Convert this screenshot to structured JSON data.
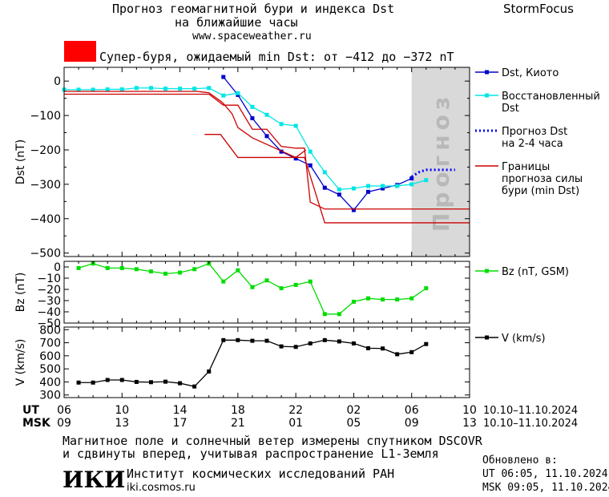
{
  "header": {
    "title_line1": "Прогноз геомагнитной бури и индекса Dst",
    "title_line2": "на ближайшие часы",
    "site_url": "www.spaceweather.ru",
    "brand": "StormFocus",
    "alert_text": "Супер-буря, ожидаемый min Dst: от −412 до −372 nT",
    "alert_color": "#ff0000"
  },
  "footer": {
    "note_line1": "Магнитное поле и солнечный ветер измерены спутником DSCOVR",
    "note_line2": "и сдвинуты вперед, учитывая распространение L1-Земля",
    "updated_label": "Обновлено в:",
    "updated_ut": "UT  06:05, 11.10.2024",
    "updated_msk": "MSK 09:05, 11.10.2024",
    "institute_logo": "ИКИ",
    "institute_name": "Институт космических исследований РАН",
    "institute_url": "iki.cosmos.ru"
  },
  "time_axis": {
    "ut_label": "UT",
    "msk_label": "MSK",
    "ut_ticks": [
      "06",
      "10",
      "14",
      "18",
      "22",
      "02",
      "06",
      "10"
    ],
    "msk_ticks": [
      "09",
      "13",
      "17",
      "21",
      "01",
      "05",
      "09",
      "13"
    ],
    "ut_range": "10.10–11.10.2024",
    "msk_range": "10.10–11.10.2024",
    "x_min_hours": 6,
    "x_max_hours": 34,
    "forecast_start_hours": 30,
    "forecast_label": "Прогноз"
  },
  "chart_data": [
    {
      "type": "line",
      "panel": "dst",
      "ylabel": "Dst (nT)",
      "ylim": [
        -510,
        40
      ],
      "yticks": [
        0,
        -100,
        -200,
        -300,
        -400,
        -500
      ],
      "x_unit": "hours since 06 UT 10.10.2024 (+6)",
      "series": [
        {
          "name": "Dst, Киото",
          "color": "#0000cc",
          "marker": "square",
          "x": [
            17,
            18,
            19,
            20,
            21,
            22,
            23,
            24,
            25,
            26,
            27,
            28,
            29,
            30
          ],
          "y": [
            12,
            -40,
            -108,
            -160,
            -205,
            -225,
            -245,
            -310,
            -330,
            -375,
            -322,
            -312,
            -302,
            -283
          ]
        },
        {
          "name": "Восстановленный Dst",
          "color": "#00e5e5",
          "marker": "square",
          "x": [
            6,
            7,
            8,
            9,
            10,
            11,
            12,
            13,
            14,
            15,
            16,
            17,
            18,
            19,
            20,
            21,
            22,
            23,
            24,
            25,
            26,
            27,
            28,
            29,
            30,
            31
          ],
          "y": [
            -25,
            -25,
            -25,
            -24,
            -24,
            -20,
            -20,
            -22,
            -22,
            -22,
            -20,
            -42,
            -35,
            -75,
            -98,
            -125,
            -130,
            -205,
            -265,
            -315,
            -312,
            -305,
            -305,
            -305,
            -300,
            -288
          ]
        },
        {
          "name": "Прогноз Dst на 2-4 часа",
          "color": "#0000ff",
          "style": "dotted",
          "x": [
            30,
            30.5,
            31,
            31.5,
            32,
            32.5,
            33
          ],
          "y": [
            -278,
            -265,
            -258,
            -258,
            -258,
            -258,
            -258
          ]
        },
        {
          "name": "Границы прогноза силы бури (min Dst)",
          "color": "#cc0000",
          "x": [
            6,
            15,
            15.2,
            16,
            16.8,
            17,
            17.6,
            18,
            19,
            22,
            22.6,
            24,
            34
          ],
          "y": [
            -30,
            -30,
            -30,
            -34,
            -58,
            -65,
            -95,
            -135,
            -165,
            -222,
            -222,
            -412,
            -412
          ]
        },
        {
          "name": "",
          "color": "#cc0000",
          "x": [
            6,
            16,
            17,
            18,
            19,
            20,
            21,
            22,
            22.6,
            23,
            24,
            34
          ],
          "y": [
            -38,
            -38,
            -70,
            -70,
            -140,
            -140,
            -190,
            -195,
            -195,
            -352,
            -372,
            -372
          ]
        },
        {
          "name": "",
          "color": "#cc0000",
          "x": [
            15.7,
            16.8,
            18,
            19,
            20,
            21,
            22,
            22.7
          ],
          "y": [
            -155,
            -155,
            -222,
            -222,
            -222,
            -222,
            -222,
            -200
          ]
        }
      ]
    },
    {
      "type": "line",
      "panel": "bz",
      "ylabel": "Bz (nT)",
      "ylim": [
        -50,
        5
      ],
      "yticks": [
        0,
        -10,
        -20,
        -30,
        -40,
        -50
      ],
      "tick_labels": [
        "0",
        "−10",
        "−20",
        "−30",
        "−40",
        "−50"
      ],
      "series": [
        {
          "name": "Bz (nT, GSM)",
          "color": "#00dd00",
          "marker": "square",
          "x": [
            7,
            8,
            9,
            10,
            11,
            12,
            13,
            14,
            15,
            16,
            17,
            18,
            19,
            20,
            21,
            22,
            23,
            24,
            25,
            26,
            27,
            28,
            29,
            30,
            31
          ],
          "y": [
            -1,
            3,
            -1,
            -1,
            -2,
            -4,
            -6,
            -5,
            -2,
            3,
            -13,
            -3,
            -18,
            -12,
            -19,
            -16,
            -13,
            -42,
            -42,
            -31,
            -28,
            -29,
            -29,
            -28,
            -19
          ]
        }
      ]
    },
    {
      "type": "line",
      "panel": "v",
      "ylabel": "V (km/s)",
      "ylim": [
        280,
        820
      ],
      "yticks": [
        800,
        700,
        600,
        500,
        400,
        300
      ],
      "series": [
        {
          "name": "V (km/s)",
          "color": "#000000",
          "marker": "square",
          "x": [
            7,
            8,
            9,
            10,
            11,
            12,
            13,
            14,
            15,
            16,
            17,
            18,
            19,
            20,
            21,
            22,
            23,
            24,
            25,
            26,
            27,
            28,
            29,
            30,
            31
          ],
          "y": [
            395,
            395,
            415,
            415,
            400,
            398,
            402,
            390,
            365,
            480,
            720,
            720,
            715,
            715,
            672,
            668,
            695,
            720,
            710,
            695,
            658,
            656,
            612,
            628,
            690
          ]
        }
      ]
    }
  ]
}
